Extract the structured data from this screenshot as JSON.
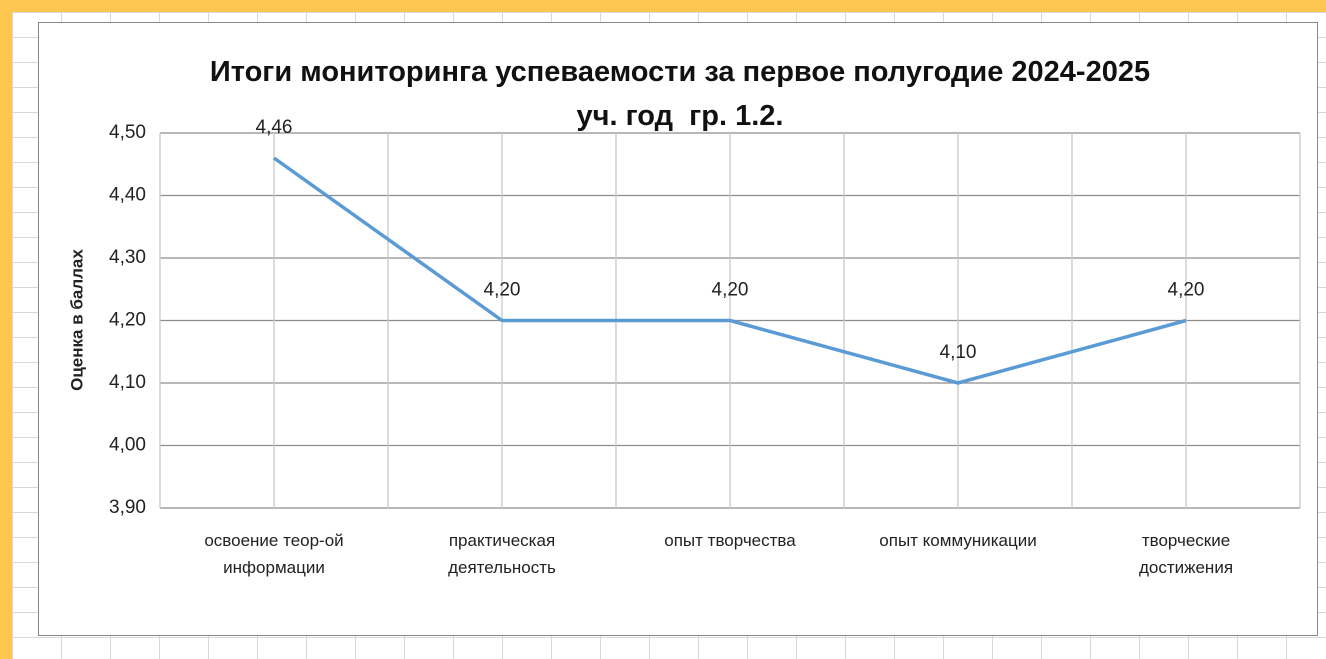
{
  "chart_data": {
    "type": "line",
    "title": "Итоги мониторинга успеваемости за первое полугодие 2024-2025 уч. год  гр. 1.2.",
    "y_label": "Оценка в баллах",
    "categories": [
      "освоение теор-ой информации",
      "практическая деятельность",
      "опыт творчества",
      "опыт коммуникации",
      "творческие достижения"
    ],
    "series": [
      {
        "name": "Оценка в баллах",
        "color": "#5b9bd5",
        "values": [
          4.46,
          4.2,
          4.2,
          4.1,
          4.2
        ],
        "value_labels": [
          "4,46",
          "4,20",
          "4,20",
          "4,10",
          "4,20"
        ]
      }
    ],
    "ylim": [
      3.9,
      4.5
    ],
    "yticks": [
      {
        "value": 3.9,
        "label": "3,90"
      },
      {
        "value": 4.0,
        "label": "4,00"
      },
      {
        "value": 4.1,
        "label": "4,10"
      },
      {
        "value": 4.2,
        "label": "4,20"
      },
      {
        "value": 4.3,
        "label": "4,30"
      },
      {
        "value": 4.4,
        "label": "4,40"
      },
      {
        "value": 4.5,
        "label": "4,50"
      }
    ],
    "grid": true
  }
}
